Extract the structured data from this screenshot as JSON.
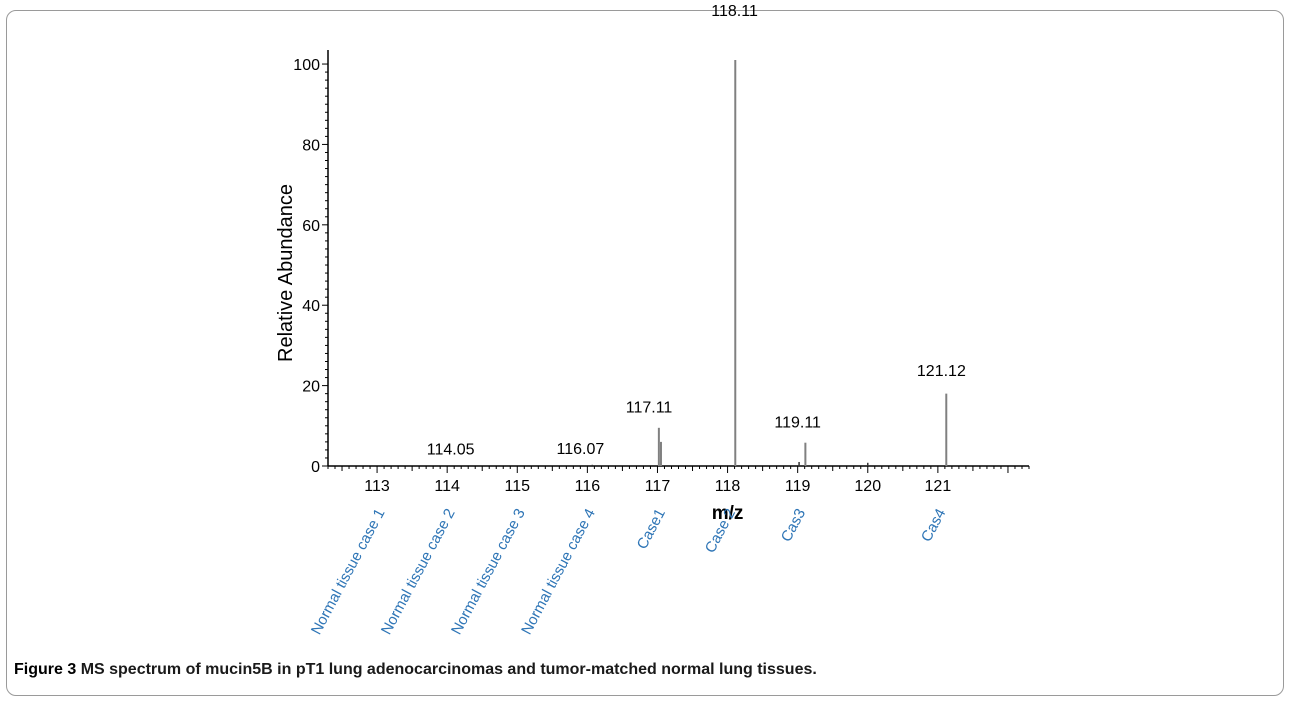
{
  "chart_data": {
    "type": "bar",
    "title": "",
    "xlabel": "m/z",
    "ylabel": "Relative Abundance",
    "xlim": [
      112.3,
      122.3
    ],
    "ylim": [
      0,
      102
    ],
    "x_ticks": [
      113,
      114,
      115,
      116,
      117,
      118,
      119,
      120,
      121
    ],
    "y_ticks": [
      0,
      20,
      40,
      60,
      80,
      100
    ],
    "peaks": [
      {
        "x": 114.05,
        "y": 0.2
      },
      {
        "x": 116.07,
        "y": 0.3
      },
      {
        "x": 117.02,
        "y": 9.5
      },
      {
        "x": 117.05,
        "y": 6.0
      },
      {
        "x": 118.11,
        "y": 101
      },
      {
        "x": 119.11,
        "y": 5.8
      },
      {
        "x": 119.02,
        "y": 1.0
      },
      {
        "x": 120.0,
        "y": 0.8
      },
      {
        "x": 121.12,
        "y": 18
      }
    ],
    "peak_labels": [
      {
        "text": "114.05",
        "x": 114.05,
        "y": 2.8
      },
      {
        "text": "116.07",
        "x": 115.9,
        "y": 3.0
      },
      {
        "text": "117.11",
        "x": 116.88,
        "y": 13.3
      },
      {
        "text": "118.11",
        "x": 118.1,
        "y": 112
      },
      {
        "text": "119.11",
        "x": 119.0,
        "y": 9.6
      },
      {
        "text": "121.12",
        "x": 121.05,
        "y": 22.4
      }
    ],
    "sample_labels": [
      {
        "text": "Normal tissue case 1",
        "x": 113.0
      },
      {
        "text": "Normal tissue case 2",
        "x": 114.0
      },
      {
        "text": "Normal tissue case 3",
        "x": 115.0
      },
      {
        "text": "Normal tissue case 4",
        "x": 116.0
      },
      {
        "text": "Case1",
        "x": 117.0
      },
      {
        "text": "Case 2",
        "x": 118.0
      },
      {
        "text": "Cas3",
        "x": 119.0
      },
      {
        "text": "Cas4",
        "x": 121.0
      }
    ],
    "colors": {
      "axis": "#000000",
      "peak": "#808080",
      "peak_dark": "#333333",
      "sample_label": "#2e75b6"
    }
  },
  "caption": {
    "label": "Figure 3",
    "text": "MS spectrum of mucin5B in pT1 lung adenocarcinomas and tumor-matched normal lung tissues."
  }
}
